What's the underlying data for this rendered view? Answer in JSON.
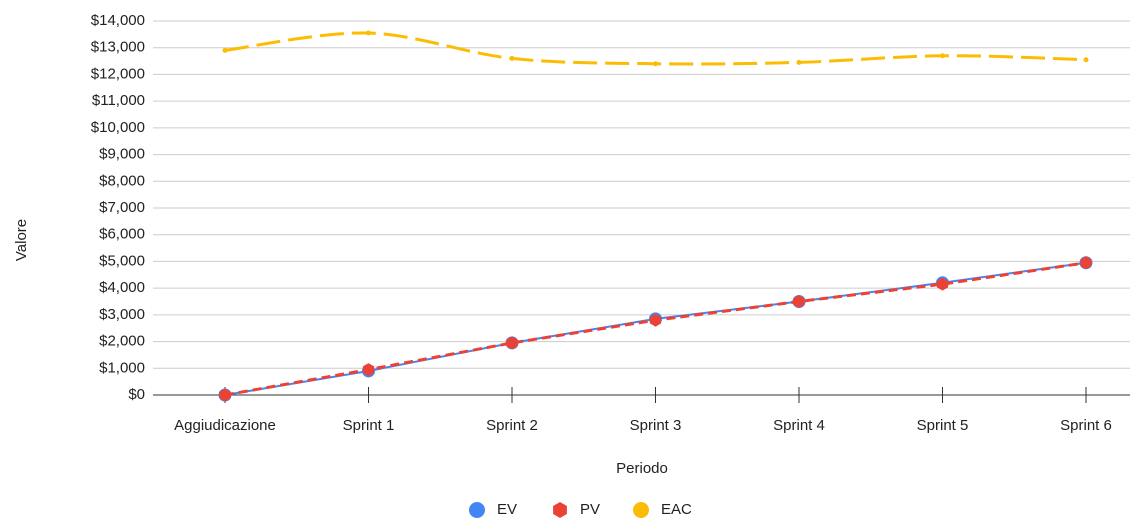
{
  "chart_data": {
    "type": "line",
    "x_label": "Periodo",
    "y_label": "Valore",
    "categories": [
      "Aggiudicazione",
      "Sprint 1",
      "Sprint 2",
      "Sprint 3",
      "Sprint 4",
      "Sprint 5",
      "Sprint 6"
    ],
    "series": [
      {
        "name": "EV",
        "color": "#4285f4",
        "marker": "circle",
        "line": "solid",
        "smooth": false,
        "values": [
          0,
          900,
          1950,
          2850,
          3500,
          4200,
          4950
        ]
      },
      {
        "name": "PV",
        "color": "#ea4335",
        "marker": "hexagon",
        "line": "dashed",
        "smooth": false,
        "values": [
          0,
          950,
          1950,
          2800,
          3500,
          4150,
          4950
        ]
      },
      {
        "name": "EAC",
        "color": "#fbbc04",
        "marker": "dot",
        "line": "dashed",
        "smooth": true,
        "values": [
          12900,
          13550,
          12600,
          12400,
          12450,
          12700,
          12550
        ]
      }
    ],
    "ylim": [
      0,
      14000
    ],
    "yticks": [
      {
        "value": 0,
        "label": "$0"
      },
      {
        "value": 1000,
        "label": "$1,000"
      },
      {
        "value": 2000,
        "label": "$2,000"
      },
      {
        "value": 3000,
        "label": "$3,000"
      },
      {
        "value": 4000,
        "label": "$4,000"
      },
      {
        "value": 5000,
        "label": "$5,000"
      },
      {
        "value": 6000,
        "label": "$6,000"
      },
      {
        "value": 7000,
        "label": "$7,000"
      },
      {
        "value": 8000,
        "label": "$8,000"
      },
      {
        "value": 9000,
        "label": "$9,000"
      },
      {
        "value": 10000,
        "label": "$10,000"
      },
      {
        "value": 11000,
        "label": "$11,000"
      },
      {
        "value": 12000,
        "label": "$12,000"
      },
      {
        "value": 13000,
        "label": "$13,000"
      },
      {
        "value": 14000,
        "label": "$14,000"
      }
    ],
    "grid": true,
    "legend": "bottom"
  }
}
